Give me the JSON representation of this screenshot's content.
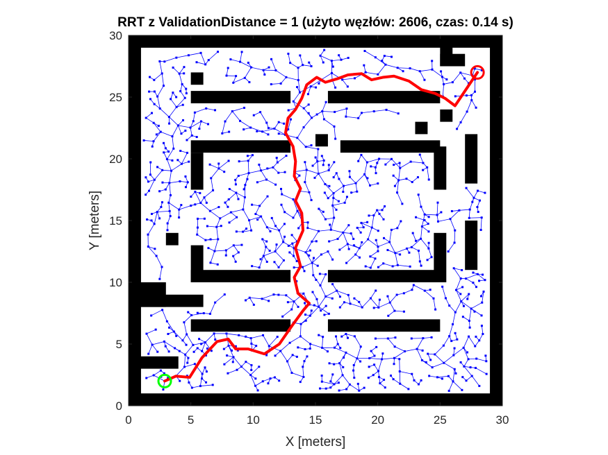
{
  "chart_data": {
    "type": "scatter",
    "title": "RRT z ValidationDistance = 1 (użyto węzłów: 2606, czas: 0.14 s)",
    "xlabel": "X [meters]",
    "ylabel": "Y [meters]",
    "xlim": [
      0,
      30
    ],
    "ylim": [
      0,
      30
    ],
    "xticks": [
      0,
      5,
      10,
      15,
      20,
      25,
      30
    ],
    "yticks": [
      0,
      5,
      10,
      15,
      20,
      25,
      30
    ],
    "grid": false,
    "colors": {
      "obstacle": "#000000",
      "tree": "#0000ff",
      "path": "#ff0000",
      "start": "#00ff00",
      "goal": "#ff0000"
    },
    "start": [
      2.9,
      2.0
    ],
    "goal": [
      28.0,
      27.0
    ],
    "obstacles": [
      [
        0,
        29,
        30,
        1
      ],
      [
        0,
        0,
        30,
        1
      ],
      [
        0,
        0,
        1,
        30
      ],
      [
        29,
        0,
        1,
        30
      ],
      [
        5,
        24.5,
        8,
        1
      ],
      [
        16,
        24.5,
        9,
        1
      ],
      [
        5,
        20.5,
        8,
        1
      ],
      [
        17,
        20.5,
        8,
        1
      ],
      [
        5,
        17.5,
        1,
        3
      ],
      [
        24.5,
        17.5,
        1,
        3.5
      ],
      [
        5,
        10,
        1,
        3
      ],
      [
        24.5,
        10,
        1,
        4
      ],
      [
        5,
        10,
        8,
        1
      ],
      [
        16,
        10,
        9,
        1
      ],
      [
        5,
        6,
        8,
        1
      ],
      [
        16,
        6,
        9,
        1
      ],
      [
        0,
        8,
        6,
        1
      ],
      [
        0,
        8,
        3,
        2
      ],
      [
        0,
        3,
        4,
        1
      ],
      [
        25,
        27.5,
        2,
        1
      ],
      [
        25,
        27.5,
        1,
        2
      ],
      [
        27,
        18,
        1,
        4
      ],
      [
        27,
        11,
        1,
        4
      ],
      [
        5,
        26,
        1,
        1
      ],
      [
        15,
        21,
        1,
        1
      ],
      [
        23,
        22,
        1,
        1
      ],
      [
        25,
        23,
        1,
        1
      ],
      [
        3,
        13,
        1,
        1
      ]
    ],
    "path": [
      [
        2.9,
        2.0
      ],
      [
        3.8,
        2.4
      ],
      [
        4.9,
        2.3
      ],
      [
        5.9,
        3.9
      ],
      [
        7.1,
        5.2
      ],
      [
        8.0,
        5.4
      ],
      [
        8.6,
        4.6
      ],
      [
        9.6,
        4.6
      ],
      [
        10.9,
        4.2
      ],
      [
        12.1,
        5.0
      ],
      [
        13.2,
        6.6
      ],
      [
        14.0,
        7.7
      ],
      [
        14.5,
        8.3
      ],
      [
        13.6,
        9.1
      ],
      [
        13.3,
        10.4
      ],
      [
        13.8,
        11.3
      ],
      [
        13.4,
        12.8
      ],
      [
        14.0,
        14.2
      ],
      [
        13.9,
        15.6
      ],
      [
        13.4,
        16.6
      ],
      [
        13.8,
        17.6
      ],
      [
        13.3,
        18.6
      ],
      [
        13.4,
        19.8
      ],
      [
        13.2,
        21.0
      ],
      [
        12.6,
        22.1
      ],
      [
        12.8,
        23.3
      ],
      [
        13.4,
        24.0
      ],
      [
        13.9,
        24.9
      ],
      [
        14.3,
        26.0
      ],
      [
        15.1,
        26.6
      ],
      [
        15.8,
        26.2
      ],
      [
        16.8,
        26.5
      ],
      [
        17.6,
        26.8
      ],
      [
        18.7,
        26.9
      ],
      [
        19.5,
        26.4
      ],
      [
        20.4,
        26.6
      ],
      [
        21.3,
        26.7
      ],
      [
        22.5,
        26.3
      ],
      [
        23.5,
        25.6
      ],
      [
        24.6,
        25.3
      ],
      [
        25.4,
        24.9
      ],
      [
        26.2,
        24.3
      ],
      [
        27.2,
        25.8
      ],
      [
        28.0,
        27.0
      ]
    ]
  }
}
